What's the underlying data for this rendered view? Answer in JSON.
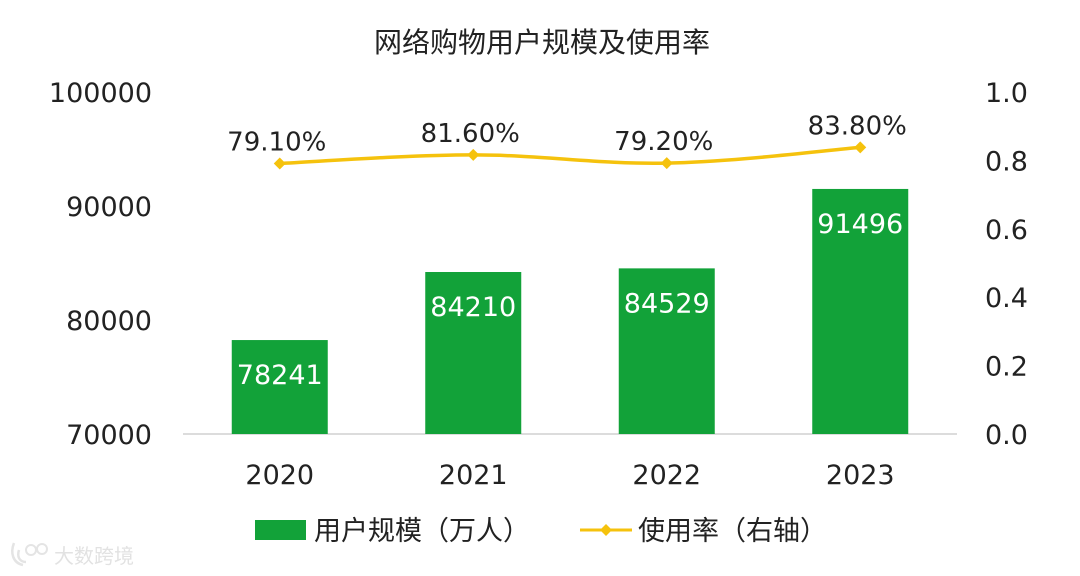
{
  "chart_data": {
    "type": "bar",
    "title": "网络购物用户规模及使用率",
    "categories": [
      "2020",
      "2021",
      "2022",
      "2023"
    ],
    "series": [
      {
        "name": "用户规模（万人）",
        "kind": "bar",
        "axis": "left",
        "values": [
          78241,
          84210,
          84529,
          91496
        ],
        "labels": [
          "78241",
          "84210",
          "84529",
          "91496"
        ],
        "color": "#12a239"
      },
      {
        "name": "使用率（右轴）",
        "kind": "line",
        "axis": "right",
        "values": [
          0.791,
          0.816,
          0.792,
          0.838
        ],
        "labels": [
          "79.10%",
          "81.60%",
          "79.20%",
          "83.80%"
        ],
        "color": "#f5c20d"
      }
    ],
    "y_left": {
      "min": 70000,
      "max": 100000,
      "ticks": [
        "70000",
        "80000",
        "90000",
        "100000"
      ],
      "tick_values": [
        70000,
        80000,
        90000,
        100000
      ]
    },
    "y_right": {
      "min": 0.0,
      "max": 1.0,
      "ticks": [
        "0.0",
        "0.2",
        "0.4",
        "0.6",
        "0.8",
        "1.0"
      ],
      "tick_values": [
        0.0,
        0.2,
        0.4,
        0.6,
        0.8,
        1.0
      ]
    },
    "grid": false,
    "legend_position": "bottom"
  },
  "watermark": {
    "text": "大数跨境"
  }
}
